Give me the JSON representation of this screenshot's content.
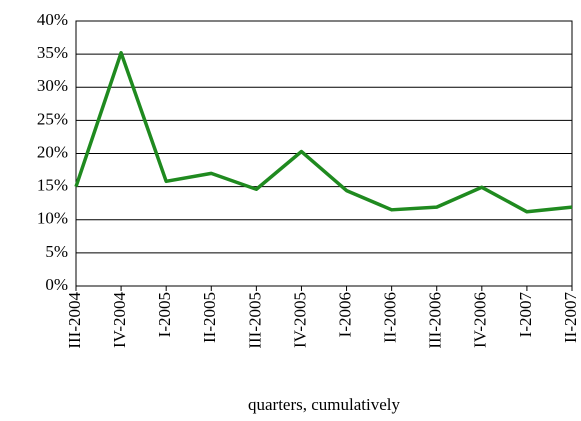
{
  "chart_data": {
    "type": "line",
    "x_label": "quarters, cumulatively",
    "categories": [
      "III-2004",
      "IV-2004",
      "I-2005",
      "II-2005",
      "III-2005",
      "IV-2005",
      "I-2006",
      "II-2006",
      "III-2006",
      "IV-2006",
      "I-2007",
      "II-2007"
    ],
    "values": [
      15,
      35.2,
      15.8,
      17,
      14.6,
      20.3,
      14.4,
      11.5,
      11.9,
      14.9,
      11.2,
      11.9
    ],
    "color": "#1f8a1f",
    "ylim": [
      0,
      40
    ],
    "yticks": [
      {
        "value": 0,
        "label": "0%"
      },
      {
        "value": 5,
        "label": "5%"
      },
      {
        "value": 10,
        "label": "10%"
      },
      {
        "value": 15,
        "label": "15%"
      },
      {
        "value": 20,
        "label": "20%"
      },
      {
        "value": 25,
        "label": "25%"
      },
      {
        "value": 30,
        "label": "30%"
      },
      {
        "value": 35,
        "label": "35%"
      },
      {
        "value": 40,
        "label": "40%"
      }
    ],
    "grid": true
  }
}
